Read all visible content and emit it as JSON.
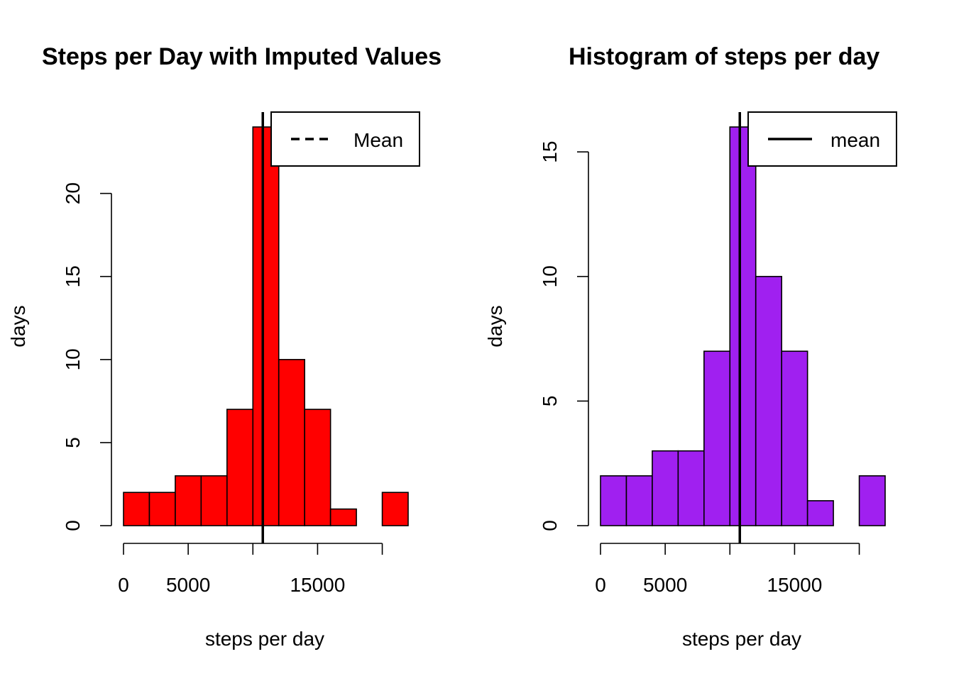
{
  "chart_data": [
    {
      "type": "bar",
      "title": "Steps per Day with Imputed Values",
      "xlabel": "steps per day",
      "ylabel": "days",
      "bar_color": "#ff0000",
      "bin_edges": [
        0,
        2000,
        4000,
        6000,
        8000,
        10000,
        12000,
        14000,
        16000,
        18000,
        20000,
        22000
      ],
      "values": [
        2,
        2,
        3,
        3,
        7,
        24,
        10,
        7,
        1,
        0,
        2
      ],
      "x_ticks": [
        0,
        5000,
        10000,
        15000,
        20000
      ],
      "x_tick_labels": [
        "0",
        "5000",
        "",
        "15000",
        ""
      ],
      "y_ticks": [
        0,
        5,
        10,
        15,
        20
      ],
      "y_tick_labels": [
        "0",
        "5",
        "10",
        "15",
        "20"
      ],
      "xlim": [
        0,
        22000
      ],
      "ylim": [
        0,
        24
      ],
      "mean_line": 10766,
      "legend": {
        "label": "Mean",
        "line_style": "dashed",
        "position": "top-right"
      }
    },
    {
      "type": "bar",
      "title": "Histogram of steps per day",
      "xlabel": "steps per day",
      "ylabel": "days",
      "bar_color": "#a020f0",
      "bin_edges": [
        0,
        2000,
        4000,
        6000,
        8000,
        10000,
        12000,
        14000,
        16000,
        18000,
        20000,
        22000
      ],
      "values": [
        2,
        2,
        3,
        3,
        7,
        16,
        10,
        7,
        1,
        0,
        2
      ],
      "x_ticks": [
        0,
        5000,
        10000,
        15000,
        20000
      ],
      "x_tick_labels": [
        "0",
        "5000",
        "",
        "15000",
        ""
      ],
      "y_ticks": [
        0,
        5,
        10,
        15
      ],
      "y_tick_labels": [
        "0",
        "5",
        "10",
        "15"
      ],
      "xlim": [
        0,
        22000
      ],
      "ylim": [
        0,
        16
      ],
      "mean_line": 10766,
      "legend": {
        "label": "mean",
        "line_style": "solid",
        "position": "top-right"
      }
    }
  ]
}
